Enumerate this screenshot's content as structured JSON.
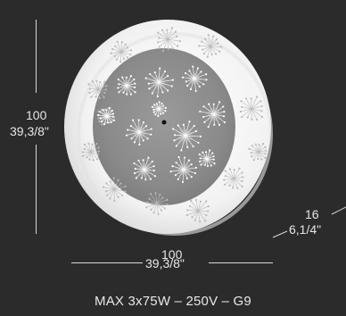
{
  "dimensions": {
    "height_mm": "100",
    "height_in": "39,3/8\"",
    "width_mm": "100",
    "width_in": "39,3/8\"",
    "depth_mm": "16",
    "depth_in": "6,1/4\""
  },
  "spec_line": "MAX 3x75W – 250V – G9",
  "colors": {
    "background": "#2b2b2b",
    "outer_disc": "#f4f4f4",
    "inner_disc": "#8f8f8f",
    "text": "#e6e6e6"
  }
}
